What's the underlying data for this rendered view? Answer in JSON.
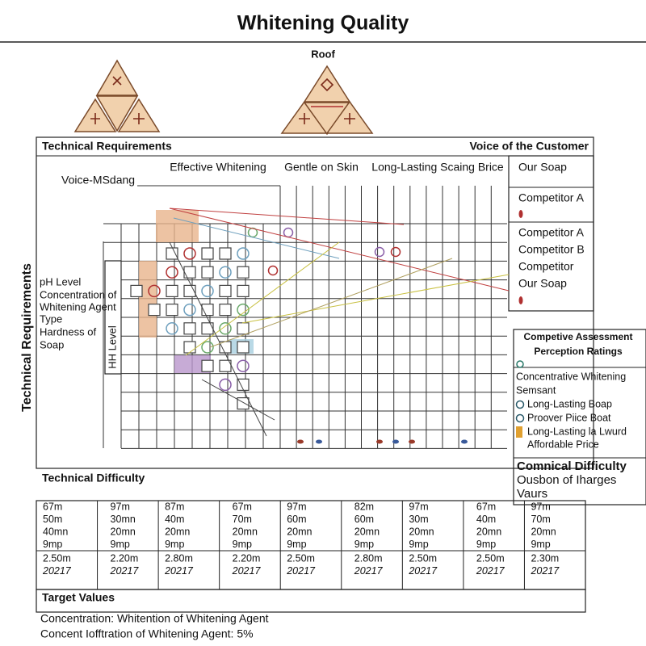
{
  "title": "Whitening Quality",
  "roof_label": "Roof",
  "header": {
    "left": "Technical Requirements",
    "right": "Voice of the Customer"
  },
  "voice_label": "Voice-MSdang",
  "columns": [
    "Effective Whitening",
    "Gentle on Skin",
    "Long-Lasting Scaing Brice"
  ],
  "customer_panel": [
    "Our Soap",
    "Competitor A",
    "Competitor A",
    "Competitor B",
    "Competitor",
    "Our Soap"
  ],
  "side_label": "Technical Requirements",
  "requirements": [
    "pH Level",
    "Concentration of",
    "Whitening Agent",
    "Type",
    "Hardness of",
    "Soap"
  ],
  "level_label": "HH Level",
  "assessment": {
    "title": "Competive Assessment",
    "subtitle": "Perception Ratings",
    "items": [
      "Concentrative Whitening",
      "Semsant",
      "Long-Lasting Boap",
      "Proover Piice Boat",
      "Long-Lasting la Lwurd",
      "Affordable Price"
    ],
    "difficulty_title": "Comnical Difficulty",
    "difficulty_lines": [
      "Ousbon of Iharges",
      "Vaurs"
    ]
  },
  "technical_difficulty": "Technical Difficulty",
  "table": {
    "columns": [
      [
        "67m",
        "50m",
        "40mn",
        "9mp",
        "2.50m",
        "20217"
      ],
      [
        "97m",
        "30mn",
        "20mn",
        "9mp",
        "2.20m",
        "20217"
      ],
      [
        "87m",
        "40m",
        "20mn",
        "9mp",
        "2.80m",
        "20217"
      ],
      [
        "67m",
        "70m",
        "20mn",
        "9mp",
        "2.20m",
        "20217"
      ],
      [
        "97m",
        "60m",
        "20mn",
        "9mp",
        "2.50m",
        "20217"
      ],
      [
        "82m",
        "60m",
        "20mn",
        "9mp",
        "2.80m",
        "20217"
      ],
      [
        "97m",
        "30m",
        "20mn",
        "9mp",
        "2.50m",
        "20217"
      ],
      [
        "67m",
        "40m",
        "20mn",
        "9mp",
        "2.50m",
        "20217"
      ],
      [
        "97m",
        "70m",
        "20mn",
        "9mp",
        "2.30m",
        "20217"
      ]
    ]
  },
  "target_values": "Target Values",
  "footer": [
    "Concentration: Whitention of Whitening Agent",
    "Concent Iofftration of Whitening Agent: 5%"
  ]
}
